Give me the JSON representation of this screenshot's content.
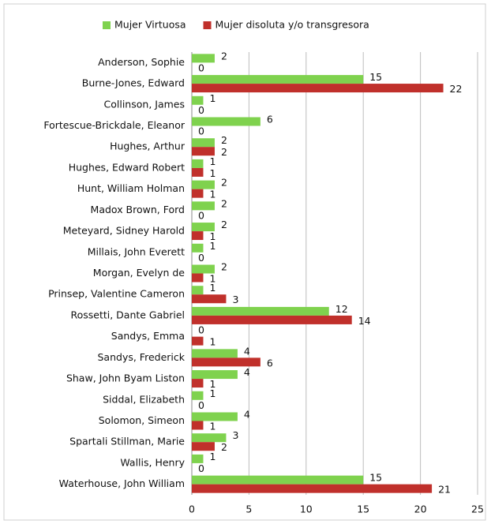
{
  "chart_data": {
    "type": "hbar",
    "categories": [
      "Anderson, Sophie",
      "Burne-Jones, Edward",
      "Collinson, James",
      "Fortescue-Brickdale, Eleanor",
      "Hughes, Arthur",
      "Hughes, Edward Robert",
      "Hunt, William Holman",
      "Madox Brown, Ford",
      "Meteyard, Sidney Harold",
      "Millais, John Everett",
      "Morgan, Evelyn de",
      "Prinsep, Valentine Cameron",
      "Rossetti, Dante Gabriel",
      "Sandys, Emma",
      "Sandys, Frederick",
      "Shaw, John Byam Liston",
      "Siddal, Elizabeth",
      "Solomon, Simeon",
      "Spartali Stillman, Marie",
      "Wallis, Henry",
      "Waterhouse, John William"
    ],
    "series": [
      {
        "name": "Mujer Virtuosa",
        "color": "#7fd24e",
        "values": [
          2,
          15,
          1,
          6,
          2,
          1,
          2,
          2,
          2,
          1,
          2,
          1,
          12,
          0,
          4,
          4,
          1,
          4,
          3,
          1,
          15
        ]
      },
      {
        "name": "Mujer disoluta y/o transgresora",
        "color": "#c0302b",
        "values": [
          0,
          22,
          0,
          0,
          2,
          1,
          1,
          0,
          1,
          0,
          1,
          3,
          14,
          1,
          6,
          1,
          0,
          1,
          2,
          0,
          21
        ]
      }
    ],
    "xlim": [
      0,
      25
    ],
    "xticks": [
      0,
      5,
      10,
      15,
      20,
      25
    ],
    "grid": true,
    "legend": "top"
  }
}
